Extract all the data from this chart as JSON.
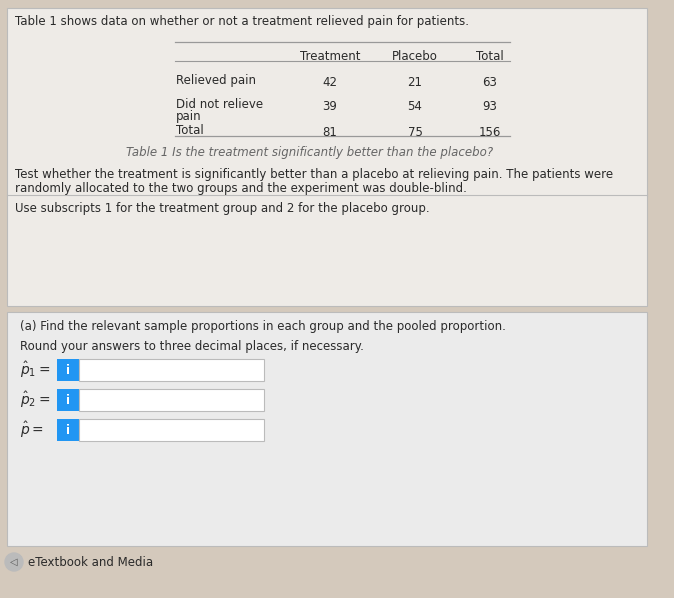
{
  "bg_color": "#d4c9bc",
  "panel1_bg": "#eeebe7",
  "panel2_bg": "#ebebeb",
  "title_text": "Table 1 shows data on whether or not a treatment relieved pain for patients.",
  "table_caption": "Table 1 Is the treatment significantly better than the placebo?",
  "body_text1": "Test whether the treatment is significantly better than a placebo at relieving pain. The patients were",
  "body_text2": "randomly allocated to the two groups and the experiment was double-blind.",
  "subscript_text": "Use subscripts 1 for the treatment group and 2 for the placebo group.",
  "col_headers": [
    "Treatment",
    "Placebo",
    "Total"
  ],
  "row_labels_line1": [
    "Relieved pain",
    "Did not relieve",
    "Total"
  ],
  "row_labels_line2": [
    "",
    "pain",
    ""
  ],
  "table_data": [
    [
      42,
      21,
      63
    ],
    [
      39,
      54,
      93
    ],
    [
      81,
      75,
      156
    ]
  ],
  "part_a_title": "(a) Find the relevant sample proportions in each group and the pooled proportion.",
  "part_a_subtitle": "Round your answers to three decimal places, if necessary.",
  "input_button_color": "#2196F3",
  "etextbook_text": "eTextbook and Media",
  "text_color": "#2a2a2a",
  "gray_text": "#555555",
  "italic_color": "#666666",
  "line_color": "#999999",
  "border_color": "#bbbbbb"
}
